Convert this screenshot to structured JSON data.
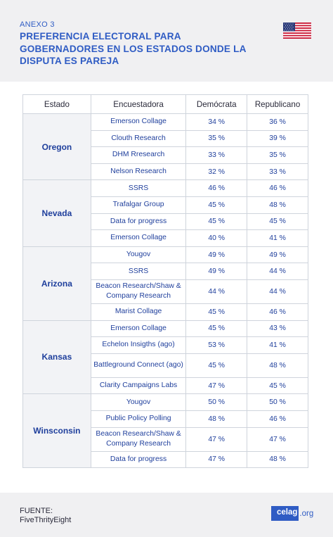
{
  "header": {
    "annex": "ANEXO 3",
    "title": "PREFERENCIA ELECTORAL PARA GOBERNADORES EN LOS ESTADOS DONDE LA DISPUTA ES PAREJA",
    "flag_icon": "us-flag-icon"
  },
  "table": {
    "headers": [
      "Estado",
      "Encuestadora",
      "Demócrata",
      "Republicano"
    ],
    "groups": [
      {
        "state": "Oregon",
        "rows": [
          {
            "pollster": "Emerson Collage",
            "dem": "34 %",
            "rep": "36 %"
          },
          {
            "pollster": "Clouth Research",
            "dem": "35 %",
            "rep": "39 %"
          },
          {
            "pollster": "DHM Rresearch",
            "dem": "33 %",
            "rep": "35 %"
          },
          {
            "pollster": "Nelson Research",
            "dem": "32 %",
            "rep": "33 %"
          }
        ]
      },
      {
        "state": "Nevada",
        "rows": [
          {
            "pollster": "SSRS",
            "dem": "46 %",
            "rep": "46 %"
          },
          {
            "pollster": "Trafalgar Group",
            "dem": "45 %",
            "rep": "48 %"
          },
          {
            "pollster": "Data for progress",
            "dem": "45 %",
            "rep": "45 %"
          },
          {
            "pollster": "Emerson Collage",
            "dem": "40 %",
            "rep": "41 %"
          }
        ]
      },
      {
        "state": "Arizona",
        "rows": [
          {
            "pollster": "Yougov",
            "dem": "49 %",
            "rep": "49 %"
          },
          {
            "pollster": "SSRS",
            "dem": "49 %",
            "rep": "44 %"
          },
          {
            "pollster": "Beacon Research/Shaw & Company Research",
            "dem": "44 %",
            "rep": "44 %"
          },
          {
            "pollster": "Marist Collage",
            "dem": "45 %",
            "rep": "46 %"
          }
        ]
      },
      {
        "state": "Kansas",
        "rows": [
          {
            "pollster": "Emerson Collage",
            "dem": "45 %",
            "rep": "43 %"
          },
          {
            "pollster": "Echelon Insigths (ago)",
            "dem": "53 %",
            "rep": "41 %"
          },
          {
            "pollster": "Battleground Connect (ago)",
            "dem": "45 %",
            "rep": "48 %"
          },
          {
            "pollster": "Clarity Campaigns Labs",
            "dem": "47 %",
            "rep": "45 %"
          }
        ]
      },
      {
        "state": "Winsconsin",
        "rows": [
          {
            "pollster": "Yougov",
            "dem": "50 %",
            "rep": "50 %"
          },
          {
            "pollster": "Public Policy Polling",
            "dem": "48 %",
            "rep": "46 %"
          },
          {
            "pollster": "Beacon Research/Shaw & Company Research",
            "dem": "47 %",
            "rep": "47 %"
          },
          {
            "pollster": "Data for progress",
            "dem": "47 %",
            "rep": "48 %"
          }
        ]
      }
    ]
  },
  "footer": {
    "source_label": "FUENTE:",
    "source_name": "FiveThrityEight",
    "logo_main": "celag",
    "logo_suffix": ".org"
  }
}
